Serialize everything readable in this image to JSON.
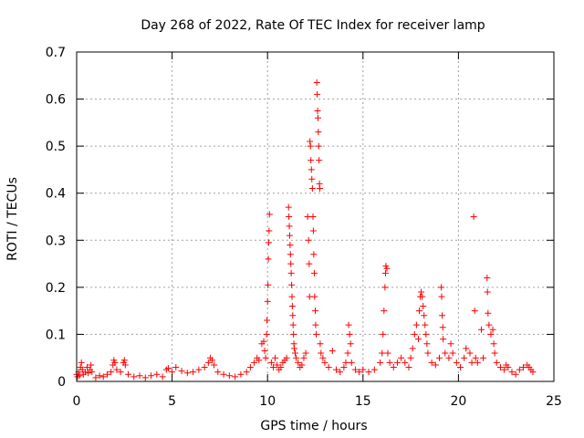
{
  "chart_data": {
    "type": "scatter",
    "title": "Day 268 of 2022, Rate Of TEC Index for receiver lamp",
    "xlabel": "GPS time / hours",
    "ylabel": "ROTI / TECUs",
    "xlim": [
      0,
      25
    ],
    "ylim": [
      0,
      0.7
    ],
    "x_ticks": [
      0,
      5,
      10,
      15,
      20,
      25
    ],
    "x_tick_labels": [
      "0",
      "5",
      "10",
      "15",
      "20",
      "25"
    ],
    "y_ticks": [
      0,
      0.1,
      0.2,
      0.3,
      0.4,
      0.5,
      0.6,
      0.7
    ],
    "y_tick_labels": [
      "0",
      "0.1",
      "0.2",
      "0.3",
      "0.4",
      "0.5",
      "0.6",
      "0.7"
    ],
    "grid": true,
    "marker": "+",
    "color": "#ff0000",
    "series": [
      {
        "name": "ROTI",
        "points": [
          [
            0.0,
            0.015
          ],
          [
            0.05,
            0.01
          ],
          [
            0.1,
            0.02
          ],
          [
            0.15,
            0.012
          ],
          [
            0.2,
            0.03
          ],
          [
            0.25,
            0.04
          ],
          [
            0.3,
            0.025
          ],
          [
            0.35,
            0.015
          ],
          [
            0.45,
            0.02
          ],
          [
            0.55,
            0.03
          ],
          [
            0.6,
            0.018
          ],
          [
            0.7,
            0.025
          ],
          [
            0.75,
            0.035
          ],
          [
            0.8,
            0.02
          ],
          [
            1.0,
            0.008
          ],
          [
            1.2,
            0.012
          ],
          [
            1.4,
            0.01
          ],
          [
            1.6,
            0.015
          ],
          [
            1.8,
            0.02
          ],
          [
            1.9,
            0.035
          ],
          [
            1.95,
            0.045
          ],
          [
            2.0,
            0.04
          ],
          [
            2.1,
            0.025
          ],
          [
            2.3,
            0.02
          ],
          [
            2.45,
            0.04
          ],
          [
            2.5,
            0.045
          ],
          [
            2.55,
            0.035
          ],
          [
            2.7,
            0.015
          ],
          [
            3.0,
            0.01
          ],
          [
            3.3,
            0.012
          ],
          [
            3.6,
            0.008
          ],
          [
            3.9,
            0.012
          ],
          [
            4.2,
            0.015
          ],
          [
            4.5,
            0.01
          ],
          [
            4.7,
            0.025
          ],
          [
            4.8,
            0.028
          ],
          [
            5.0,
            0.02
          ],
          [
            5.2,
            0.03
          ],
          [
            5.5,
            0.022
          ],
          [
            5.8,
            0.018
          ],
          [
            6.1,
            0.02
          ],
          [
            6.4,
            0.025
          ],
          [
            6.7,
            0.03
          ],
          [
            6.9,
            0.04
          ],
          [
            7.0,
            0.05
          ],
          [
            7.1,
            0.045
          ],
          [
            7.2,
            0.035
          ],
          [
            7.4,
            0.02
          ],
          [
            7.7,
            0.015
          ],
          [
            8.0,
            0.012
          ],
          [
            8.3,
            0.01
          ],
          [
            8.6,
            0.015
          ],
          [
            8.9,
            0.02
          ],
          [
            9.1,
            0.03
          ],
          [
            9.3,
            0.04
          ],
          [
            9.45,
            0.05
          ],
          [
            9.55,
            0.045
          ],
          [
            9.7,
            0.08
          ],
          [
            9.8,
            0.085
          ],
          [
            9.85,
            0.065
          ],
          [
            9.9,
            0.05
          ],
          [
            9.95,
            0.1
          ],
          [
            9.97,
            0.13
          ],
          [
            10.0,
            0.17
          ],
          [
            10.02,
            0.205
          ],
          [
            10.04,
            0.26
          ],
          [
            10.06,
            0.295
          ],
          [
            10.08,
            0.32
          ],
          [
            10.1,
            0.355
          ],
          [
            10.2,
            0.04
          ],
          [
            10.3,
            0.03
          ],
          [
            10.4,
            0.05
          ],
          [
            10.5,
            0.035
          ],
          [
            10.6,
            0.025
          ],
          [
            10.7,
            0.03
          ],
          [
            10.8,
            0.04
          ],
          [
            10.9,
            0.045
          ],
          [
            11.0,
            0.05
          ],
          [
            11.1,
            0.37
          ],
          [
            11.12,
            0.35
          ],
          [
            11.14,
            0.33
          ],
          [
            11.16,
            0.31
          ],
          [
            11.18,
            0.29
          ],
          [
            11.2,
            0.27
          ],
          [
            11.22,
            0.25
          ],
          [
            11.24,
            0.23
          ],
          [
            11.26,
            0.205
          ],
          [
            11.28,
            0.18
          ],
          [
            11.3,
            0.16
          ],
          [
            11.32,
            0.14
          ],
          [
            11.34,
            0.12
          ],
          [
            11.36,
            0.1
          ],
          [
            11.38,
            0.08
          ],
          [
            11.4,
            0.07
          ],
          [
            11.45,
            0.06
          ],
          [
            11.5,
            0.05
          ],
          [
            11.6,
            0.04
          ],
          [
            11.7,
            0.03
          ],
          [
            11.8,
            0.035
          ],
          [
            11.9,
            0.05
          ],
          [
            12.0,
            0.06
          ],
          [
            12.1,
            0.35
          ],
          [
            12.15,
            0.3
          ],
          [
            12.18,
            0.25
          ],
          [
            12.2,
            0.18
          ],
          [
            12.22,
            0.51
          ],
          [
            12.25,
            0.5
          ],
          [
            12.27,
            0.47
          ],
          [
            12.3,
            0.45
          ],
          [
            12.32,
            0.43
          ],
          [
            12.35,
            0.41
          ],
          [
            12.38,
            0.35
          ],
          [
            12.4,
            0.32
          ],
          [
            12.42,
            0.27
          ],
          [
            12.45,
            0.23
          ],
          [
            12.47,
            0.18
          ],
          [
            12.5,
            0.15
          ],
          [
            12.52,
            0.12
          ],
          [
            12.55,
            0.1
          ],
          [
            12.58,
            0.635
          ],
          [
            12.6,
            0.61
          ],
          [
            12.62,
            0.575
          ],
          [
            12.64,
            0.56
          ],
          [
            12.66,
            0.53
          ],
          [
            12.68,
            0.5
          ],
          [
            12.7,
            0.47
          ],
          [
            12.72,
            0.42
          ],
          [
            12.74,
            0.41
          ],
          [
            12.76,
            0.08
          ],
          [
            12.8,
            0.06
          ],
          [
            12.9,
            0.05
          ],
          [
            13.0,
            0.04
          ],
          [
            13.2,
            0.03
          ],
          [
            13.4,
            0.065
          ],
          [
            13.6,
            0.025
          ],
          [
            13.8,
            0.02
          ],
          [
            14.0,
            0.03
          ],
          [
            14.1,
            0.04
          ],
          [
            14.2,
            0.06
          ],
          [
            14.25,
            0.12
          ],
          [
            14.3,
            0.1
          ],
          [
            14.35,
            0.08
          ],
          [
            14.4,
            0.04
          ],
          [
            14.6,
            0.025
          ],
          [
            14.8,
            0.02
          ],
          [
            15.0,
            0.025
          ],
          [
            15.3,
            0.02
          ],
          [
            15.6,
            0.025
          ],
          [
            15.9,
            0.04
          ],
          [
            16.0,
            0.06
          ],
          [
            16.05,
            0.1
          ],
          [
            16.1,
            0.15
          ],
          [
            16.15,
            0.2
          ],
          [
            16.18,
            0.23
          ],
          [
            16.2,
            0.245
          ],
          [
            16.25,
            0.24
          ],
          [
            16.3,
            0.06
          ],
          [
            16.4,
            0.04
          ],
          [
            16.6,
            0.03
          ],
          [
            16.8,
            0.04
          ],
          [
            17.0,
            0.05
          ],
          [
            17.2,
            0.04
          ],
          [
            17.4,
            0.03
          ],
          [
            17.5,
            0.05
          ],
          [
            17.6,
            0.07
          ],
          [
            17.7,
            0.1
          ],
          [
            17.8,
            0.12
          ],
          [
            17.9,
            0.09
          ],
          [
            17.95,
            0.15
          ],
          [
            18.0,
            0.18
          ],
          [
            18.05,
            0.19
          ],
          [
            18.1,
            0.18
          ],
          [
            18.15,
            0.16
          ],
          [
            18.2,
            0.14
          ],
          [
            18.25,
            0.12
          ],
          [
            18.3,
            0.1
          ],
          [
            18.35,
            0.08
          ],
          [
            18.4,
            0.06
          ],
          [
            18.6,
            0.04
          ],
          [
            18.8,
            0.035
          ],
          [
            19.0,
            0.05
          ],
          [
            19.1,
            0.2
          ],
          [
            19.12,
            0.18
          ],
          [
            19.15,
            0.14
          ],
          [
            19.18,
            0.115
          ],
          [
            19.2,
            0.09
          ],
          [
            19.3,
            0.06
          ],
          [
            19.5,
            0.05
          ],
          [
            19.6,
            0.08
          ],
          [
            19.7,
            0.06
          ],
          [
            19.9,
            0.04
          ],
          [
            20.1,
            0.03
          ],
          [
            20.3,
            0.05
          ],
          [
            20.4,
            0.07
          ],
          [
            20.6,
            0.06
          ],
          [
            20.7,
            0.04
          ],
          [
            20.8,
            0.35
          ],
          [
            20.85,
            0.15
          ],
          [
            20.9,
            0.05
          ],
          [
            21.0,
            0.04
          ],
          [
            21.2,
            0.11
          ],
          [
            21.3,
            0.05
          ],
          [
            21.5,
            0.22
          ],
          [
            21.52,
            0.19
          ],
          [
            21.55,
            0.145
          ],
          [
            21.6,
            0.12
          ],
          [
            21.7,
            0.1
          ],
          [
            21.8,
            0.11
          ],
          [
            21.85,
            0.08
          ],
          [
            21.9,
            0.06
          ],
          [
            22.0,
            0.04
          ],
          [
            22.2,
            0.03
          ],
          [
            22.4,
            0.025
          ],
          [
            22.5,
            0.035
          ],
          [
            22.6,
            0.03
          ],
          [
            22.8,
            0.02
          ],
          [
            23.0,
            0.015
          ],
          [
            23.2,
            0.025
          ],
          [
            23.4,
            0.03
          ],
          [
            23.6,
            0.035
          ],
          [
            23.7,
            0.03
          ],
          [
            23.8,
            0.025
          ],
          [
            23.9,
            0.02
          ]
        ]
      }
    ]
  }
}
